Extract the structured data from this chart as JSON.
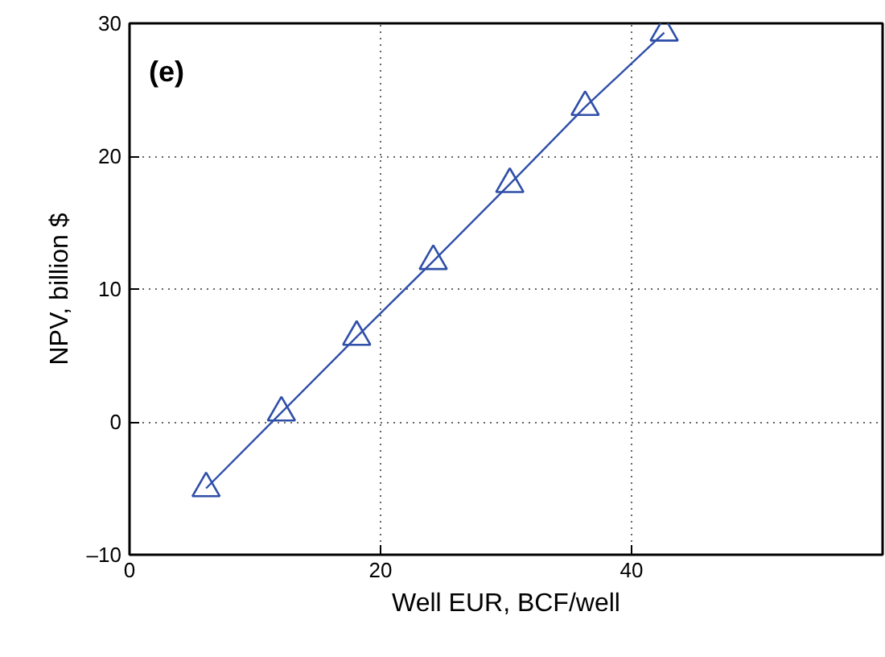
{
  "chart_data": {
    "type": "line",
    "xlabel": "Well EUR, BCF/well",
    "ylabel": "NPV, billion $",
    "annotations": [
      "(e)"
    ],
    "x": [
      6.1,
      12.1,
      18.1,
      24.2,
      30.3,
      36.3,
      42.6
    ],
    "series": [
      {
        "color": "#2f4fa8",
        "values": [
          -5.0,
          0.7,
          6.4,
          12.1,
          17.9,
          23.7,
          29.3
        ]
      }
    ],
    "xlim": [
      0,
      60
    ],
    "ylim": [
      -10,
      30
    ],
    "xticks": [
      0,
      20,
      40
    ],
    "yticks": [
      {
        "value": -10,
        "label": "–10"
      },
      0,
      10,
      20,
      30
    ],
    "grid": true,
    "marker": "triangle",
    "line_style": "solid"
  }
}
